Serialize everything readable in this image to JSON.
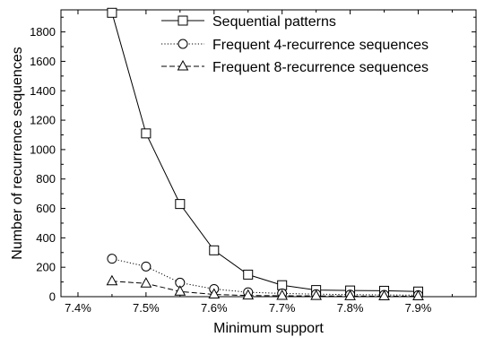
{
  "chart_data": {
    "type": "line",
    "title": "",
    "xlabel": "Minimum support",
    "ylabel": "Number of recurrence sequences",
    "xlim": [
      7.375,
      7.985
    ],
    "ylim": [
      0,
      1950
    ],
    "x_ticks": [
      7.4,
      7.5,
      7.6,
      7.7,
      7.8,
      7.9
    ],
    "x_tick_labels": [
      "7.4%",
      "7.5%",
      "7.6%",
      "7.7%",
      "7.8%",
      "7.9%"
    ],
    "y_ticks": [
      0,
      200,
      400,
      600,
      800,
      1000,
      1200,
      1400,
      1600,
      1800
    ],
    "y_tick_labels": [
      "0",
      "200",
      "400",
      "600",
      "800",
      "1000",
      "1200",
      "1400",
      "1600",
      "1800"
    ],
    "grid": false,
    "legend_position": "top-right",
    "x": [
      7.45,
      7.5,
      7.55,
      7.6,
      7.65,
      7.7,
      7.75,
      7.8,
      7.85,
      7.9
    ],
    "series": [
      {
        "name": "Sequential patterns",
        "marker": "square",
        "line_style": "solid",
        "values": [
          1930,
          1110,
          630,
          315,
          150,
          78,
          45,
          42,
          40,
          35
        ]
      },
      {
        "name": "Frequent 4-recurrence sequences",
        "marker": "circle",
        "line_style": "dotted",
        "values": [
          258,
          205,
          95,
          52,
          30,
          22,
          17,
          14,
          12,
          10
        ]
      },
      {
        "name": "Frequent 8-recurrence sequences",
        "marker": "triangle",
        "line_style": "dashed",
        "values": [
          105,
          90,
          35,
          15,
          8,
          6,
          5,
          4,
          3,
          3
        ]
      }
    ]
  }
}
